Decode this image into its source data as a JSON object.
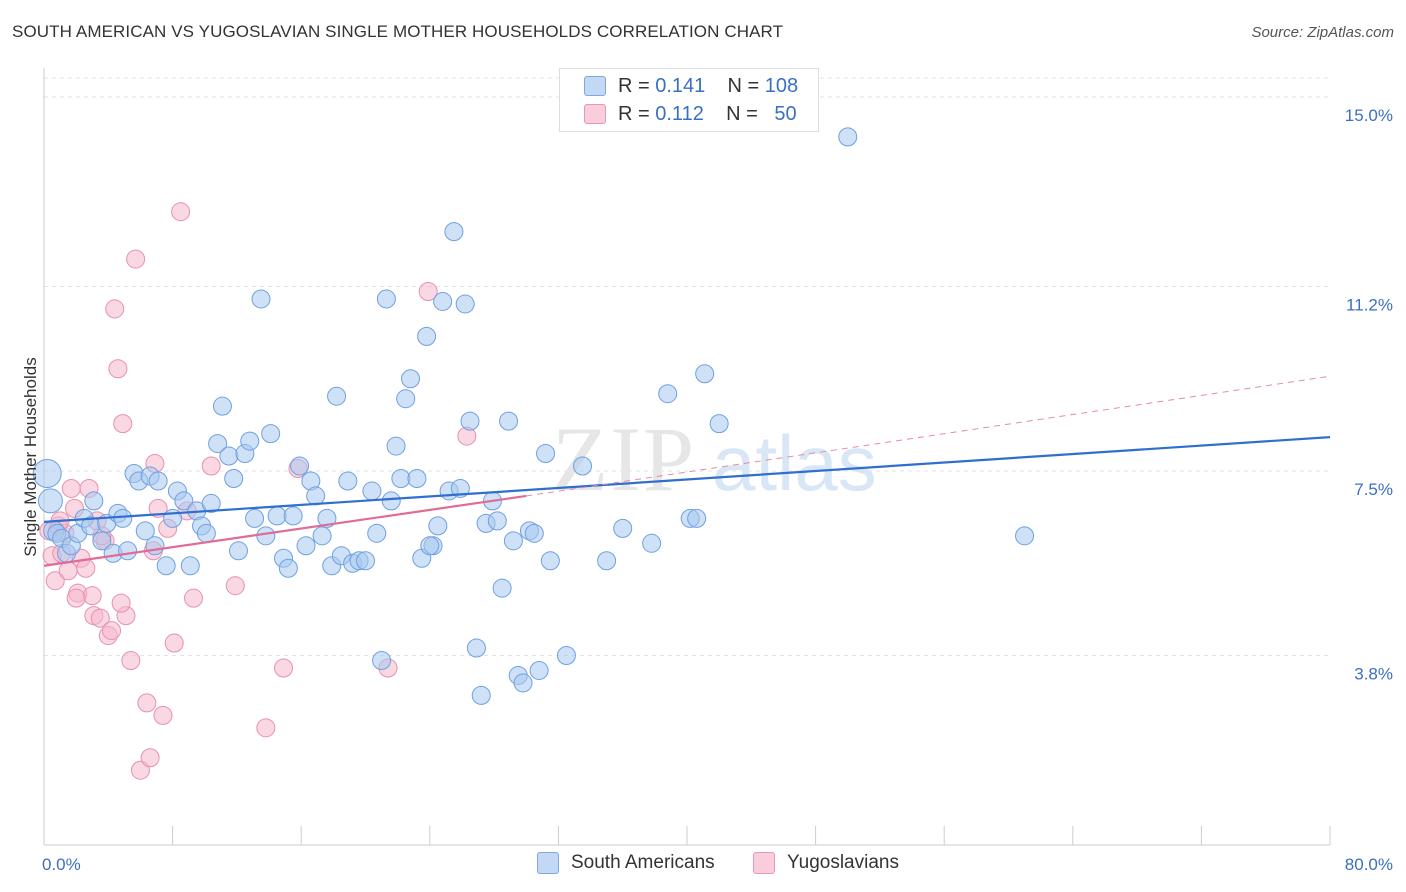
{
  "title": "SOUTH AMERICAN VS YUGOSLAVIAN SINGLE MOTHER HOUSEHOLDS CORRELATION CHART",
  "source": "Source: ZipAtlas.com",
  "watermark": {
    "zip": "ZIP",
    "atlas": "atlas"
  },
  "legend_top": [
    {
      "r_label": "R =",
      "r_value": "0.141",
      "n_label": "N =",
      "n_value": "108",
      "color": "#a8c8f0"
    },
    {
      "r_label": "R =",
      "r_value": "0.112",
      "n_label": "N =",
      "n_value": "50",
      "color": "#f5b8cc"
    }
  ],
  "legend_bottom": [
    {
      "label": "South Americans",
      "color": "#a8c8f0"
    },
    {
      "label": "Yugoslavians",
      "color": "#f5b8cc"
    }
  ],
  "chart_data": {
    "type": "scatter",
    "ylabel": "Single Mother Households",
    "xlim": [
      0,
      80
    ],
    "ylim": [
      0,
      15.5
    ],
    "y_ticks": [
      {
        "value": 3.8,
        "label": "3.8%"
      },
      {
        "value": 7.5,
        "label": "7.5%"
      },
      {
        "value": 11.2,
        "label": "11.2%"
      },
      {
        "value": 15.0,
        "label": "15.0%"
      }
    ],
    "x_tick_labels": {
      "min": "0.0%",
      "max": "80.0%"
    },
    "grid": true,
    "series": [
      {
        "name": "South Americans",
        "color": "#6fa0e0",
        "fill": "#a8c8f0",
        "trend": {
          "x1": 0,
          "y1": 6.48,
          "x2": 80,
          "y2": 8.18
        },
        "points": [
          [
            0.2,
            7.45,
            14
          ],
          [
            0.4,
            6.9,
            12
          ],
          [
            0.6,
            6.3,
            10
          ],
          [
            0.8,
            6.25,
            9
          ],
          [
            1.1,
            6.15,
            9
          ],
          [
            1.4,
            5.85,
            9
          ],
          [
            1.7,
            6.0,
            9
          ],
          [
            2.1,
            6.25,
            9
          ],
          [
            2.5,
            6.55,
            9
          ],
          [
            2.9,
            6.4,
            9
          ],
          [
            3.1,
            6.9,
            9
          ],
          [
            3.6,
            6.1,
            9
          ],
          [
            3.9,
            6.45,
            9
          ],
          [
            4.3,
            5.85,
            9
          ],
          [
            4.6,
            6.65,
            9
          ],
          [
            4.9,
            6.55,
            9
          ],
          [
            5.2,
            5.9,
            9
          ],
          [
            5.6,
            7.45,
            9
          ],
          [
            5.9,
            7.3,
            9
          ],
          [
            6.3,
            6.3,
            9
          ],
          [
            6.6,
            7.4,
            9
          ],
          [
            6.9,
            6.0,
            9
          ],
          [
            7.1,
            7.3,
            9
          ],
          [
            7.6,
            5.6,
            9
          ],
          [
            8.0,
            6.55,
            9
          ],
          [
            8.3,
            7.1,
            9
          ],
          [
            8.7,
            6.9,
            9
          ],
          [
            9.1,
            5.6,
            9
          ],
          [
            9.5,
            6.7,
            9
          ],
          [
            9.8,
            6.4,
            9
          ],
          [
            10.1,
            6.25,
            9
          ],
          [
            10.4,
            6.85,
            9
          ],
          [
            10.8,
            8.05,
            9
          ],
          [
            11.1,
            8.8,
            9
          ],
          [
            11.5,
            7.8,
            9
          ],
          [
            11.8,
            7.35,
            9
          ],
          [
            12.1,
            5.9,
            9
          ],
          [
            12.5,
            7.85,
            9
          ],
          [
            12.8,
            8.1,
            9
          ],
          [
            13.1,
            6.55,
            9
          ],
          [
            13.5,
            10.95,
            9
          ],
          [
            13.8,
            6.2,
            9
          ],
          [
            14.1,
            8.25,
            9
          ],
          [
            14.5,
            6.6,
            9
          ],
          [
            14.9,
            5.75,
            9
          ],
          [
            15.2,
            5.55,
            9
          ],
          [
            15.5,
            6.6,
            9
          ],
          [
            15.9,
            7.6,
            9
          ],
          [
            16.3,
            6.0,
            9
          ],
          [
            16.6,
            7.3,
            9
          ],
          [
            16.9,
            7.0,
            9
          ],
          [
            17.3,
            6.2,
            9
          ],
          [
            17.6,
            6.55,
            9
          ],
          [
            17.9,
            5.6,
            9
          ],
          [
            18.2,
            9.0,
            9
          ],
          [
            18.5,
            5.8,
            9
          ],
          [
            18.9,
            7.3,
            9
          ],
          [
            19.2,
            5.65,
            9
          ],
          [
            19.6,
            5.7,
            9
          ],
          [
            20.0,
            5.7,
            9
          ],
          [
            20.4,
            7.1,
            9
          ],
          [
            20.7,
            6.25,
            9
          ],
          [
            21.0,
            3.7,
            9
          ],
          [
            21.3,
            10.95,
            9
          ],
          [
            21.6,
            6.9,
            9
          ],
          [
            21.9,
            8.0,
            9
          ],
          [
            22.2,
            7.35,
            9
          ],
          [
            22.5,
            8.95,
            9
          ],
          [
            22.8,
            9.35,
            9
          ],
          [
            23.2,
            7.35,
            9
          ],
          [
            23.5,
            5.75,
            9
          ],
          [
            23.8,
            10.2,
            9
          ],
          [
            24.2,
            6.0,
            9
          ],
          [
            24.5,
            6.4,
            9
          ],
          [
            24.8,
            10.9,
            9
          ],
          [
            25.2,
            7.1,
            9
          ],
          [
            25.5,
            12.3,
            9
          ],
          [
            25.9,
            7.15,
            9
          ],
          [
            26.2,
            10.85,
            9
          ],
          [
            26.5,
            8.5,
            9
          ],
          [
            26.9,
            3.95,
            9
          ],
          [
            27.2,
            3.0,
            9
          ],
          [
            27.5,
            6.45,
            9
          ],
          [
            27.9,
            6.9,
            9
          ],
          [
            28.2,
            6.5,
            9
          ],
          [
            28.5,
            5.15,
            9
          ],
          [
            28.9,
            8.5,
            9
          ],
          [
            29.2,
            6.1,
            9
          ],
          [
            29.5,
            3.4,
            9
          ],
          [
            29.8,
            3.25,
            9
          ],
          [
            30.2,
            6.3,
            9
          ],
          [
            30.5,
            6.25,
            9
          ],
          [
            30.8,
            3.5,
            9
          ],
          [
            31.2,
            7.85,
            9
          ],
          [
            31.5,
            5.7,
            9
          ],
          [
            32.5,
            3.8,
            9
          ],
          [
            33.5,
            7.6,
            9
          ],
          [
            35.0,
            5.7,
            9
          ],
          [
            36.0,
            6.35,
            9
          ],
          [
            37.8,
            6.05,
            9
          ],
          [
            38.8,
            9.05,
            9
          ],
          [
            40.2,
            6.55,
            9
          ],
          [
            40.6,
            6.55,
            9
          ],
          [
            41.1,
            9.45,
            9
          ],
          [
            42.0,
            8.45,
            9
          ],
          [
            50.0,
            14.2,
            9
          ],
          [
            61.0,
            6.2,
            9
          ],
          [
            24.0,
            6.0,
            9
          ]
        ]
      },
      {
        "name": "Yugoslavians",
        "color": "#e890ae",
        "fill": "#f5b8cc",
        "trend": {
          "x1": 0,
          "y1": 5.6,
          "x2": 30,
          "y2": 7.0
        },
        "trend_dashed": {
          "x1": 30,
          "y1": 7.0,
          "x2": 80,
          "y2": 9.4
        },
        "points": [
          [
            0.3,
            6.3,
            9
          ],
          [
            0.5,
            5.8,
            9
          ],
          [
            0.7,
            5.3,
            9
          ],
          [
            0.9,
            6.4,
            9
          ],
          [
            1.1,
            5.85,
            9
          ],
          [
            1.3,
            6.25,
            9
          ],
          [
            1.5,
            5.5,
            9
          ],
          [
            1.7,
            7.15,
            9
          ],
          [
            1.9,
            6.75,
            9
          ],
          [
            2.1,
            5.05,
            9
          ],
          [
            2.3,
            5.75,
            9
          ],
          [
            2.6,
            5.55,
            9
          ],
          [
            2.8,
            7.15,
            9
          ],
          [
            3.0,
            5.0,
            9
          ],
          [
            3.1,
            4.6,
            9
          ],
          [
            3.3,
            6.5,
            9
          ],
          [
            3.5,
            4.55,
            9
          ],
          [
            3.8,
            6.1,
            9
          ],
          [
            4.0,
            4.2,
            9
          ],
          [
            4.2,
            4.3,
            9
          ],
          [
            4.4,
            10.75,
            9
          ],
          [
            4.6,
            9.55,
            9
          ],
          [
            4.9,
            8.45,
            9
          ],
          [
            5.1,
            4.6,
            9
          ],
          [
            5.4,
            3.7,
            9
          ],
          [
            5.7,
            11.75,
            9
          ],
          [
            6.0,
            1.5,
            9
          ],
          [
            6.4,
            2.85,
            9
          ],
          [
            6.6,
            1.75,
            9
          ],
          [
            6.8,
            5.9,
            9
          ],
          [
            7.1,
            6.75,
            9
          ],
          [
            7.4,
            2.6,
            9
          ],
          [
            7.7,
            6.35,
            9
          ],
          [
            8.1,
            4.05,
            9
          ],
          [
            8.5,
            12.7,
            9
          ],
          [
            8.9,
            6.7,
            9
          ],
          [
            9.3,
            4.95,
            9
          ],
          [
            10.4,
            7.6,
            9
          ],
          [
            11.9,
            5.2,
            9
          ],
          [
            13.8,
            2.35,
            9
          ],
          [
            14.9,
            3.55,
            9
          ],
          [
            15.8,
            7.55,
            9
          ],
          [
            21.4,
            3.55,
            9
          ],
          [
            23.9,
            11.1,
            9
          ],
          [
            26.3,
            8.2,
            9
          ],
          [
            1.0,
            6.5,
            9
          ],
          [
            2.0,
            4.95,
            9
          ],
          [
            4.8,
            4.85,
            9
          ],
          [
            6.9,
            7.65,
            9
          ],
          [
            3.6,
            6.2,
            9
          ]
        ]
      }
    ]
  }
}
